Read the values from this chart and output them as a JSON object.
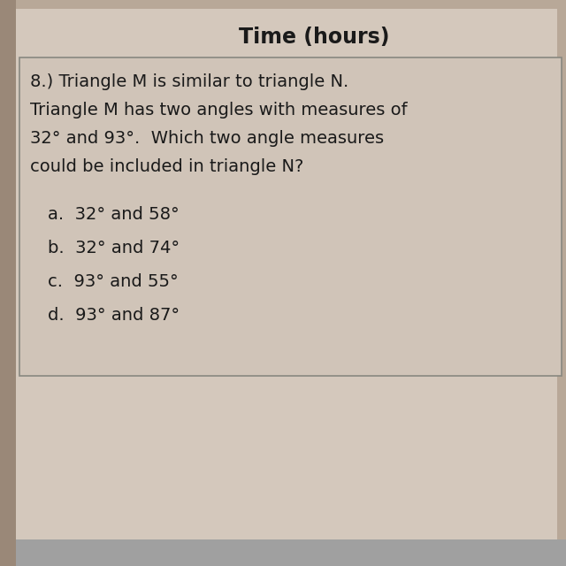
{
  "header": "Time (hours)",
  "question_line1": "8.) Triangle M is similar to triangle N.",
  "question_line2": "Triangle M has two angles with measures of",
  "question_line3": "32° and 93°.  Which two angle measures",
  "question_line4": "could be included in triangle N?",
  "options": [
    "a.  32° and 58°",
    "b.  32° and 74°",
    "c.  93° and 55°",
    "d.  93° and 87°"
  ],
  "bg_outer": "#b8a898",
  "bg_paper": "#d4c8bc",
  "bg_box": "#d0c4b8",
  "border_color": "#888880",
  "header_color": "#1a1a1a",
  "text_color": "#1a1a1a",
  "header_fontsize": 17,
  "question_fontsize": 14,
  "option_fontsize": 14
}
